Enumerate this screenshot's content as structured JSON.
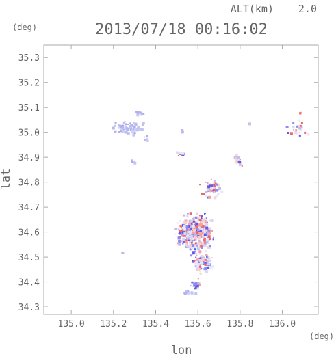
{
  "header": {
    "altitude_label": "ALT(km)",
    "altitude_value": "2.0",
    "timestamp": "2013/07/18 00:16:02",
    "y_unit": "(deg)"
  },
  "colors": {
    "axis": "#aaaaaa",
    "text": "#666666",
    "positive": "#ee5555",
    "negative": "#5555ee",
    "neutral": "#bbbbee"
  },
  "chart_data": {
    "type": "heatmap",
    "title": "2013/07/18 00:16:02",
    "xlabel": "lon",
    "ylabel": "lat",
    "x_unit": "(deg)",
    "y_unit": "(deg)",
    "xlim": [
      134.87,
      136.17
    ],
    "ylim": [
      34.27,
      35.35
    ],
    "x_ticks": [
      135.0,
      135.2,
      135.4,
      135.6,
      135.8,
      136.0
    ],
    "y_ticks": [
      34.3,
      34.4,
      34.5,
      34.6,
      34.7,
      34.8,
      34.9,
      35.0,
      35.1,
      35.2,
      35.3
    ],
    "x_tick_labels": [
      "135.0",
      "135.2",
      "135.4",
      "135.6",
      "135.8",
      "136.0"
    ],
    "y_tick_labels": [
      "34.3",
      "34.4",
      "34.5",
      "34.6",
      "34.7",
      "34.8",
      "34.9",
      "35.0",
      "35.1",
      "35.2",
      "35.3"
    ],
    "grid": false,
    "clusters": [
      {
        "lon": 135.27,
        "lat": 35.02,
        "rlon": 0.1,
        "rlat": 0.035,
        "n": 70,
        "mix": "neutral"
      },
      {
        "lon": 135.31,
        "lat": 35.08,
        "rlon": 0.03,
        "rlat": 0.015,
        "n": 14,
        "mix": "neutral"
      },
      {
        "lon": 135.35,
        "lat": 34.98,
        "rlon": 0.015,
        "rlat": 0.015,
        "n": 6,
        "mix": "neutral"
      },
      {
        "lon": 135.29,
        "lat": 34.89,
        "rlon": 0.015,
        "rlat": 0.012,
        "n": 6,
        "mix": "neutral"
      },
      {
        "lon": 136.07,
        "lat": 35.02,
        "rlon": 0.06,
        "rlat": 0.04,
        "n": 26,
        "mix": "mixed"
      },
      {
        "lon": 136.08,
        "lat": 35.08,
        "rlon": 0.01,
        "rlat": 0.01,
        "n": 3,
        "mix": "positive"
      },
      {
        "lon": 135.58,
        "lat": 34.6,
        "rlon": 0.11,
        "rlat": 0.1,
        "n": 420,
        "mix": "mixed"
      },
      {
        "lon": 135.62,
        "lat": 34.48,
        "rlon": 0.07,
        "rlat": 0.05,
        "n": 110,
        "mix": "mixed"
      },
      {
        "lon": 135.66,
        "lat": 34.78,
        "rlon": 0.06,
        "rlat": 0.05,
        "n": 60,
        "mix": "mixed"
      },
      {
        "lon": 135.78,
        "lat": 34.89,
        "rlon": 0.04,
        "rlat": 0.03,
        "n": 22,
        "mix": "mixed"
      },
      {
        "lon": 135.52,
        "lat": 34.92,
        "rlon": 0.03,
        "rlat": 0.015,
        "n": 10,
        "mix": "mixed"
      },
      {
        "lon": 135.59,
        "lat": 34.39,
        "rlon": 0.04,
        "rlat": 0.03,
        "n": 20,
        "mix": "mixed"
      },
      {
        "lon": 135.55,
        "lat": 34.36,
        "rlon": 0.05,
        "rlat": 0.012,
        "n": 14,
        "mix": "neutral"
      },
      {
        "lon": 135.52,
        "lat": 35.01,
        "rlon": 0.008,
        "rlat": 0.01,
        "n": 3,
        "mix": "neutral"
      },
      {
        "lon": 135.84,
        "lat": 35.04,
        "rlon": 0.006,
        "rlat": 0.006,
        "n": 2,
        "mix": "neutral"
      },
      {
        "lon": 135.24,
        "lat": 34.52,
        "rlon": 0.006,
        "rlat": 0.006,
        "n": 2,
        "mix": "neutral"
      }
    ]
  }
}
